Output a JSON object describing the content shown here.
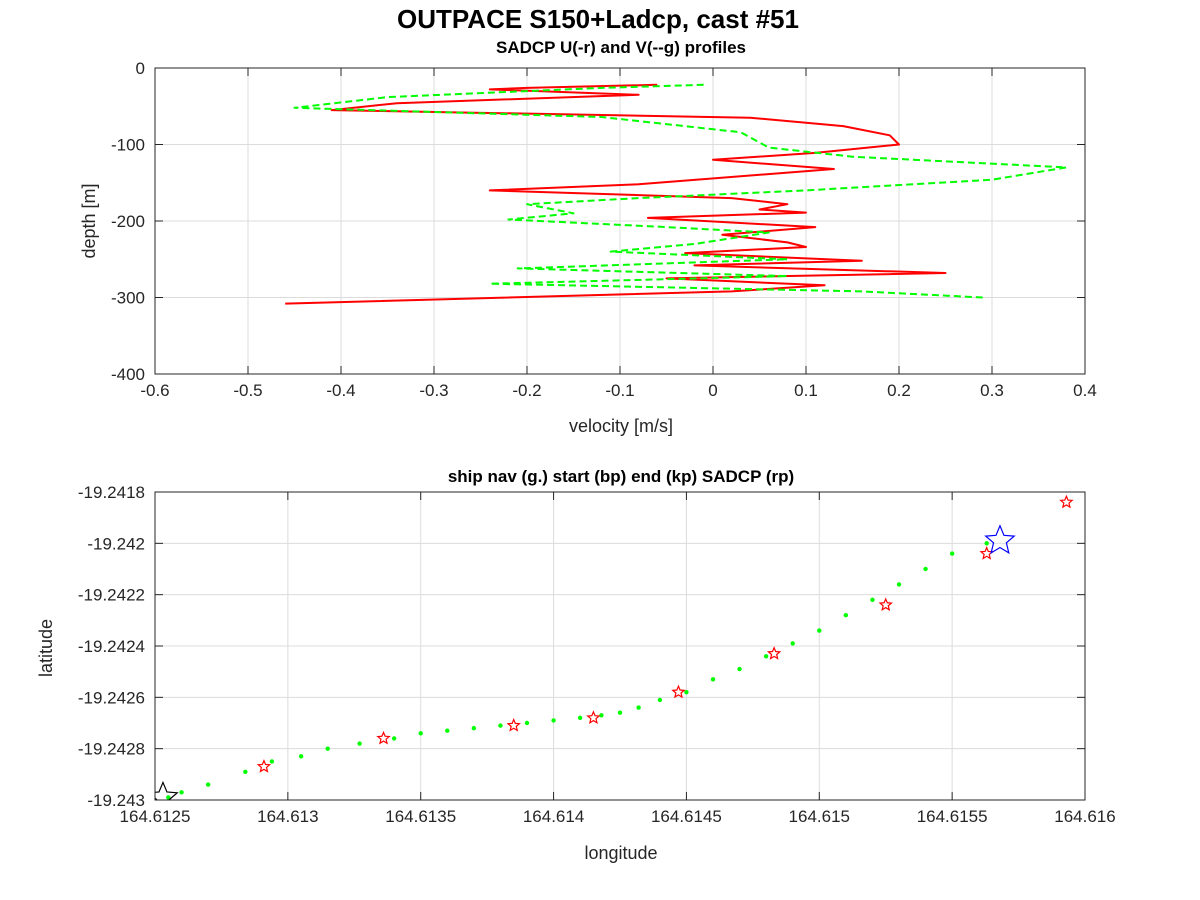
{
  "figure": {
    "title": "OUTPACE S150+Ladcp, cast #51"
  },
  "chart_data": [
    {
      "type": "line",
      "title": "SADCP U(-r) and V(--g) profiles",
      "xlabel": "velocity [m/s]",
      "ylabel": "depth [m]",
      "xlim": [
        -0.6,
        0.4
      ],
      "ylim": [
        -400,
        0
      ],
      "xticks": [
        -0.6,
        -0.5,
        -0.4,
        -0.3,
        -0.2,
        -0.1,
        0,
        0.1,
        0.2,
        0.3,
        0.4
      ],
      "yticks": [
        -400,
        -300,
        -200,
        -100,
        0
      ],
      "grid": true,
      "series": [
        {
          "name": "U",
          "color": "#ff0000",
          "dash": "solid",
          "points": [
            [
              -0.06,
              -22
            ],
            [
              -0.2,
              -26
            ],
            [
              -0.24,
              -28
            ],
            [
              -0.08,
              -35
            ],
            [
              -0.34,
              -46
            ],
            [
              -0.41,
              -55
            ],
            [
              0.04,
              -65
            ],
            [
              0.14,
              -76
            ],
            [
              0.19,
              -88
            ],
            [
              0.2,
              -100
            ],
            [
              0.11,
              -111
            ],
            [
              0.0,
              -120
            ],
            [
              0.13,
              -132
            ],
            [
              -0.08,
              -152
            ],
            [
              -0.24,
              -160
            ],
            [
              0.02,
              -170
            ],
            [
              0.08,
              -178
            ],
            [
              0.05,
              -185
            ],
            [
              0.1,
              -189
            ],
            [
              -0.07,
              -196
            ],
            [
              0.11,
              -208
            ],
            [
              0.01,
              -218
            ],
            [
              0.08,
              -228
            ],
            [
              0.1,
              -234
            ],
            [
              -0.03,
              -242
            ],
            [
              0.16,
              -252
            ],
            [
              -0.02,
              -258
            ],
            [
              0.25,
              -268
            ],
            [
              -0.05,
              -275
            ],
            [
              0.12,
              -284
            ],
            [
              0.02,
              -292
            ],
            [
              -0.46,
              -308
            ]
          ]
        },
        {
          "name": "V",
          "color": "#00ff00",
          "dash": "dashed",
          "points": [
            [
              -0.01,
              -22
            ],
            [
              -0.12,
              -26
            ],
            [
              -0.35,
              -38
            ],
            [
              -0.45,
              -52
            ],
            [
              -0.12,
              -64
            ],
            [
              0.03,
              -84
            ],
            [
              0.06,
              -104
            ],
            [
              0.15,
              -116
            ],
            [
              0.38,
              -130
            ],
            [
              0.3,
              -146
            ],
            [
              0.1,
              -160
            ],
            [
              -0.08,
              -170
            ],
            [
              -0.2,
              -178
            ],
            [
              -0.15,
              -190
            ],
            [
              -0.22,
              -198
            ],
            [
              -0.05,
              -208
            ],
            [
              0.06,
              -215
            ],
            [
              -0.02,
              -230
            ],
            [
              -0.11,
              -240
            ],
            [
              0.08,
              -250
            ],
            [
              -0.21,
              -262
            ],
            [
              0.08,
              -272
            ],
            [
              -0.24,
              -282
            ],
            [
              0.16,
              -292
            ],
            [
              0.29,
              -300
            ]
          ]
        }
      ]
    },
    {
      "type": "scatter",
      "title": "ship nav (g.) start (bp) end (kp) SADCP (rp)",
      "xlabel": "longitude",
      "ylabel": "latitude",
      "xlim": [
        164.6125,
        164.616
      ],
      "ylim": [
        -19.243,
        -19.2418
      ],
      "xticks": [
        "164.6125",
        "164.613",
        "164.6135",
        "164.614",
        "164.6145",
        "164.615",
        "164.6155",
        "164.616"
      ],
      "yticks": [
        "-19.243",
        "-19.2428",
        "-19.2426",
        "-19.2424",
        "-19.2422",
        "-19.242",
        "-19.2418"
      ],
      "grid": true,
      "series": [
        {
          "name": "ship nav",
          "color": "#00ff00",
          "marker": "dot",
          "points": [
            [
              164.61255,
              -19.24299
            ],
            [
              164.6126,
              -19.24297
            ],
            [
              164.6127,
              -19.24294
            ],
            [
              164.61284,
              -19.24289
            ],
            [
              164.61294,
              -19.24285
            ],
            [
              164.61305,
              -19.24283
            ],
            [
              164.61315,
              -19.2428
            ],
            [
              164.61327,
              -19.24278
            ],
            [
              164.6134,
              -19.24276
            ],
            [
              164.6135,
              -19.24274
            ],
            [
              164.6136,
              -19.24273
            ],
            [
              164.6137,
              -19.24272
            ],
            [
              164.6138,
              -19.24271
            ],
            [
              164.6139,
              -19.2427
            ],
            [
              164.614,
              -19.24269
            ],
            [
              164.6141,
              -19.24268
            ],
            [
              164.61418,
              -19.24267
            ],
            [
              164.61425,
              -19.24266
            ],
            [
              164.61432,
              -19.24264
            ],
            [
              164.6144,
              -19.24261
            ],
            [
              164.6145,
              -19.24258
            ],
            [
              164.6146,
              -19.24253
            ],
            [
              164.6147,
              -19.24249
            ],
            [
              164.6148,
              -19.24244
            ],
            [
              164.6149,
              -19.24239
            ],
            [
              164.615,
              -19.24234
            ],
            [
              164.6151,
              -19.24228
            ],
            [
              164.6152,
              -19.24222
            ],
            [
              164.6153,
              -19.24216
            ],
            [
              164.6154,
              -19.2421
            ],
            [
              164.6155,
              -19.24204
            ],
            [
              164.61563,
              -19.242
            ]
          ]
        },
        {
          "name": "SADCP",
          "color": "#ff0000",
          "marker": "star",
          "points": [
            [
              164.61291,
              -19.24287
            ],
            [
              164.61336,
              -19.24276
            ],
            [
              164.61385,
              -19.24271
            ],
            [
              164.61415,
              -19.24268
            ],
            [
              164.61447,
              -19.24258
            ],
            [
              164.61483,
              -19.24243
            ],
            [
              164.61525,
              -19.24224
            ],
            [
              164.61563,
              -19.24204
            ],
            [
              164.61593,
              -19.24184
            ]
          ]
        },
        {
          "name": "start",
          "color": "#0000ff",
          "marker": "large-star",
          "points": [
            [
              164.61568,
              -19.24199
            ]
          ]
        },
        {
          "name": "end",
          "color": "#000000",
          "marker": "large-star",
          "points": [
            [
              164.61253,
              -19.24299
            ]
          ]
        }
      ]
    }
  ]
}
